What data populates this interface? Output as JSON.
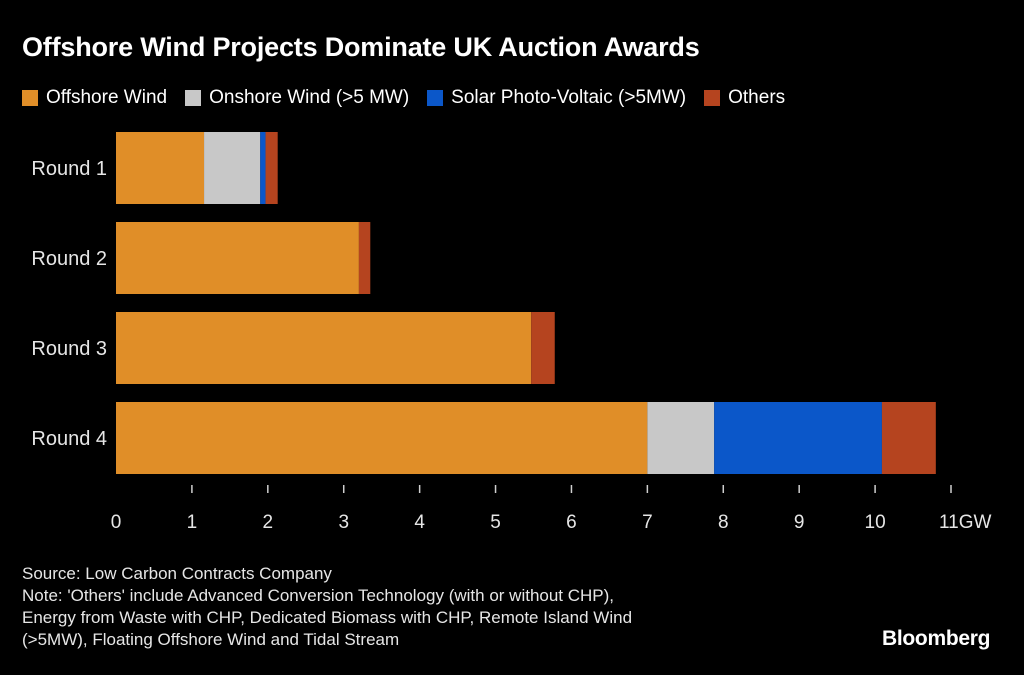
{
  "title": "Offshore Wind Projects Dominate UK Auction Awards",
  "legend": [
    {
      "label": "Offshore Wind",
      "color": "#E08E28"
    },
    {
      "label": "Onshore Wind (>5 MW)",
      "color": "#C8C8C8"
    },
    {
      "label": "Solar Photo-Voltaic (>5MW)",
      "color": "#0B57C9"
    },
    {
      "label": "Others",
      "color": "#B5441F"
    }
  ],
  "chart_data": {
    "type": "bar",
    "orientation": "horizontal",
    "stacked": true,
    "title": "Offshore Wind Projects Dominate UK Auction Awards",
    "categories": [
      "Round 1",
      "Round 2",
      "Round 3",
      "Round 4"
    ],
    "series": [
      {
        "name": "Offshore Wind",
        "color": "#E08E28",
        "values": [
          1.16,
          3.2,
          5.47,
          7.0
        ]
      },
      {
        "name": "Onshore Wind (>5 MW)",
        "color": "#C8C8C8",
        "values": [
          0.74,
          0,
          0,
          0.88
        ]
      },
      {
        "name": "Solar Photo-Voltaic (>5MW)",
        "color": "#0B57C9",
        "values": [
          0.07,
          0,
          0,
          2.21
        ]
      },
      {
        "name": "Others",
        "color": "#B5441F",
        "values": [
          0.16,
          0.15,
          0.31,
          0.71
        ]
      }
    ],
    "xlim": [
      0,
      11
    ],
    "ticks": [
      "0",
      "1",
      "2",
      "3",
      "4",
      "5",
      "6",
      "7",
      "8",
      "9",
      "10",
      "11GW"
    ],
    "unit": "GW",
    "legend_position": "top-left",
    "grid": false
  },
  "footer": {
    "source": "Source: Low Carbon Contracts Company",
    "note_lines": [
      "Note: 'Others' include Advanced Conversion Technology (with or without CHP),",
      "Energy from Waste with CHP, Dedicated Biomass with CHP, Remote Island Wind",
      "(>5MW), Floating Offshore Wind and Tidal Stream"
    ]
  },
  "brand": "Bloomberg"
}
